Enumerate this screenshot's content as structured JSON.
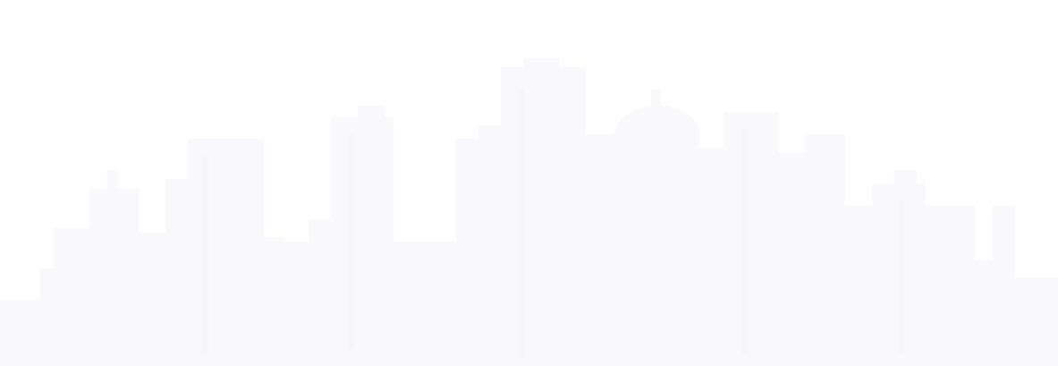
{
  "background": {
    "color": "#ffffff"
  },
  "skyline": {
    "icon": "city-skyline-icon",
    "fill_color": "#f9f9fc",
    "accent_color": "#f3f4f8"
  }
}
